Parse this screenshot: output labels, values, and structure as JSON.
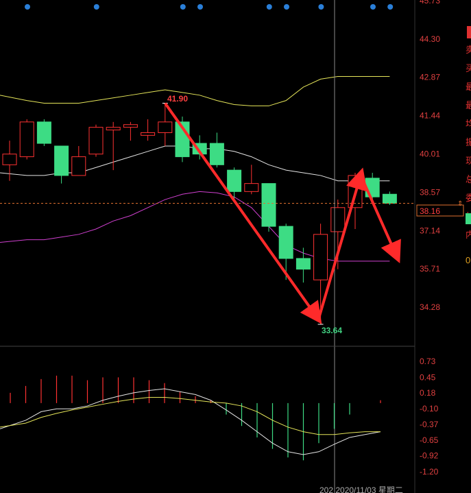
{
  "colors": {
    "background": "#000000",
    "up": "#ff3232",
    "down": "#3ddc84",
    "upper_band": "#e6e65a",
    "middle_band": "#e6e6e6",
    "lower_band": "#d040d0",
    "dif": "#e6e6e6",
    "dea": "#e6e65a",
    "arrow": "#ff2a2a",
    "axis_text": "#e04040",
    "price_box": "#e07030"
  },
  "price_ticks": [
    "45.73",
    "44.30",
    "42.87",
    "41.44",
    "40.01",
    "38.57",
    "37.14",
    "35.71",
    "34.28"
  ],
  "macd_ticks": [
    "0.73",
    "0.45",
    "0.18",
    "-0.10",
    "-0.37",
    "-0.65",
    "-0.92",
    "-1.20"
  ],
  "current_price_label": "38.16",
  "high_label": "41.90",
  "low_label": "33.64",
  "date_label": "202 2020/11/03 星期二",
  "side_chars": [
    "卖",
    "买",
    "最",
    "最",
    "均",
    "振",
    "现",
    "总",
    "委",
    "外",
    "内"
  ],
  "side_value": "0",
  "chart_data": [
    {
      "type": "candlestick",
      "panel": "price",
      "yrange": [
        33.2,
        45.73
      ],
      "candles": [
        {
          "open": 39.6,
          "close": 40.0,
          "high": 40.5,
          "low": 39.0
        },
        {
          "open": 39.9,
          "close": 41.2,
          "high": 41.3,
          "low": 39.8
        },
        {
          "open": 41.2,
          "close": 40.4,
          "high": 41.3,
          "low": 40.3
        },
        {
          "open": 40.3,
          "close": 39.2,
          "high": 40.3,
          "low": 38.9
        },
        {
          "open": 39.2,
          "close": 39.9,
          "high": 40.3,
          "low": 39.2
        },
        {
          "open": 40.0,
          "close": 41.0,
          "high": 41.1,
          "low": 39.9
        },
        {
          "open": 40.9,
          "close": 41.0,
          "high": 41.2,
          "low": 39.4
        },
        {
          "open": 41.0,
          "close": 41.1,
          "high": 41.2,
          "low": 40.5
        },
        {
          "open": 40.7,
          "close": 40.8,
          "high": 41.3,
          "low": 40.5
        },
        {
          "open": 40.8,
          "close": 41.2,
          "high": 41.9,
          "low": 40.3
        },
        {
          "open": 41.2,
          "close": 39.9,
          "high": 41.4,
          "low": 39.7
        },
        {
          "open": 40.4,
          "close": 40.0,
          "high": 40.7,
          "low": 39.8
        },
        {
          "open": 40.4,
          "close": 39.6,
          "high": 40.8,
          "low": 39.5
        },
        {
          "open": 39.4,
          "close": 38.6,
          "high": 39.5,
          "low": 38.3
        },
        {
          "open": 38.6,
          "close": 38.9,
          "high": 39.6,
          "low": 38.5
        },
        {
          "open": 38.9,
          "close": 37.3,
          "high": 38.9,
          "low": 37.1
        },
        {
          "open": 37.3,
          "close": 36.1,
          "high": 37.4,
          "low": 35.3
        },
        {
          "open": 36.1,
          "close": 35.7,
          "high": 36.5,
          "low": 35.2
        },
        {
          "open": 35.3,
          "close": 37.0,
          "high": 37.4,
          "low": 33.64
        },
        {
          "open": 37.1,
          "close": 38.0,
          "high": 38.3,
          "low": 35.7
        },
        {
          "open": 38.0,
          "close": 39.2,
          "high": 39.3,
          "low": 37.2
        },
        {
          "open": 39.1,
          "close": 38.4,
          "high": 39.3,
          "low": 38.2
        },
        {
          "open": 38.5,
          "close": 38.16,
          "high": 38.6,
          "low": 38.1
        }
      ],
      "upper_band": [
        42.2,
        42.0,
        41.9,
        41.9,
        41.9,
        42.0,
        42.1,
        42.2,
        42.3,
        42.4,
        42.3,
        42.2,
        42.0,
        41.85,
        41.8,
        41.8,
        42.0,
        42.5,
        42.8,
        42.9,
        42.9,
        42.9,
        42.9
      ],
      "middle_band": [
        39.3,
        39.2,
        39.2,
        39.3,
        39.3,
        39.5,
        39.7,
        39.9,
        40.1,
        40.3,
        40.3,
        40.2,
        40.2,
        40.1,
        39.9,
        39.6,
        39.4,
        39.3,
        39.2,
        39.0,
        39.0,
        39.0,
        39.0
      ],
      "lower_band": [
        36.7,
        36.8,
        36.8,
        36.9,
        37.0,
        37.2,
        37.5,
        37.7,
        38.0,
        38.3,
        38.5,
        38.6,
        38.55,
        38.4,
        38.0,
        37.3,
        36.6,
        36.3,
        36.1,
        36.0,
        36.0,
        36.0,
        36.0
      ],
      "current_price": 38.16,
      "high_marker": 41.9,
      "low_marker": 33.64
    },
    {
      "type": "bar",
      "panel": "macd",
      "yrange": [
        -1.2,
        0.73
      ],
      "histogram": [
        0.18,
        0.3,
        0.42,
        0.48,
        0.48,
        0.4,
        0.45,
        0.45,
        0.45,
        0.4,
        0.35,
        0.2,
        0.12,
        0.05,
        -0.2,
        -0.4,
        -0.6,
        -0.8,
        -0.95,
        -1.0,
        -0.7,
        -0.45,
        -0.2,
        0.0,
        0.05
      ],
      "dif": [
        -0.45,
        -0.3,
        -0.15,
        -0.1,
        -0.1,
        -0.05,
        0.05,
        0.12,
        0.18,
        0.22,
        0.25,
        0.2,
        0.15,
        0.05,
        -0.12,
        -0.3,
        -0.5,
        -0.7,
        -0.85,
        -0.9,
        -0.85,
        -0.72,
        -0.6,
        -0.55,
        -0.5
      ],
      "dea": [
        -0.42,
        -0.35,
        -0.25,
        -0.18,
        -0.12,
        -0.07,
        -0.02,
        0.03,
        0.07,
        0.1,
        0.1,
        0.08,
        0.05,
        0.02,
        0.0,
        -0.05,
        -0.15,
        -0.3,
        -0.42,
        -0.5,
        -0.55,
        -0.55,
        -0.52,
        -0.5,
        -0.5
      ]
    }
  ]
}
